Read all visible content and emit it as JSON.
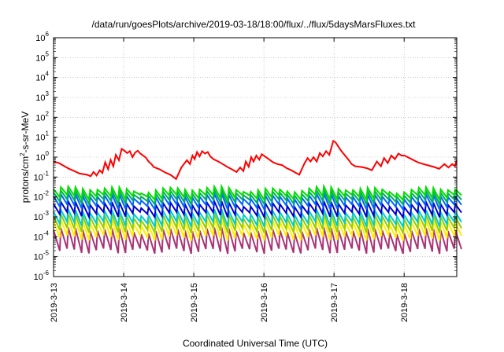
{
  "chart_data": {
    "type": "line",
    "title": "/data/run/goesPlots/archive/2019-03-18/18:00/flux/../flux/5daysMarsFluxes.txt",
    "xlabel": "Coordinated Universal Time (UTC)",
    "ylabel": {
      "pre": "protons/cm",
      "sup": "2",
      "post": "-s-sr-MeV"
    },
    "yscale": "log",
    "ylim": [
      1e-06,
      1000000.0
    ],
    "yticks": [
      {
        "base": "10",
        "exp": "-6",
        "value": 1e-06
      },
      {
        "base": "10",
        "exp": "-5",
        "value": 1e-05
      },
      {
        "base": "10",
        "exp": "-4",
        "value": 0.0001
      },
      {
        "base": "10",
        "exp": "-3",
        "value": 0.001
      },
      {
        "base": "10",
        "exp": "-2",
        "value": 0.01
      },
      {
        "base": "10",
        "exp": "-1",
        "value": 0.1
      },
      {
        "base": "10",
        "exp": "0",
        "value": 1
      },
      {
        "base": "10",
        "exp": "1",
        "value": 10
      },
      {
        "base": "10",
        "exp": "2",
        "value": 100
      },
      {
        "base": "10",
        "exp": "3",
        "value": 1000
      },
      {
        "base": "10",
        "exp": "4",
        "value": 10000
      },
      {
        "base": "10",
        "exp": "5",
        "value": 100000
      },
      {
        "base": "10",
        "exp": "6",
        "value": 1000000
      }
    ],
    "xlim": [
      "2019-03-13T00:00",
      "2019-03-18T18:00"
    ],
    "xticks": [
      {
        "label": "2019-3-13",
        "value": "2019-03-13T00:00"
      },
      {
        "label": "2019-3-14",
        "value": "2019-03-14T00:00"
      },
      {
        "label": "2019-3-15",
        "value": "2019-03-15T00:00"
      },
      {
        "label": "2019-3-16",
        "value": "2019-03-16T00:00"
      },
      {
        "label": "2019-3-17",
        "value": "2019-03-17T00:00"
      },
      {
        "label": "2019-3-18",
        "value": "2019-03-18T00:00"
      }
    ],
    "grid": true,
    "series": [
      {
        "color": "#ff0000",
        "x": [
          "2019-03-13T00:00",
          "2019-03-13T01:52",
          "2019-03-13T03:46",
          "2019-03-13T05:17",
          "2019-03-13T07:06",
          "2019-03-13T08:55",
          "2019-03-13T10:13",
          "2019-03-13T11:27",
          "2019-03-13T12:41",
          "2019-03-13T13:41",
          "2019-03-13T14:43",
          "2019-03-13T15:48",
          "2019-03-13T16:42",
          "2019-03-13T17:41",
          "2019-03-13T18:40",
          "2019-03-13T19:32",
          "2019-03-13T20:28",
          "2019-03-13T21:20",
          "2019-03-13T22:23",
          "2019-03-13T23:19",
          "2019-03-14T00:15",
          "2019-03-14T01:11",
          "2019-03-14T02:07",
          "2019-03-14T03:00",
          "2019-03-14T03:56",
          "2019-03-14T04:51",
          "2019-03-14T05:44",
          "2019-03-14T06:40",
          "2019-03-14T07:36",
          "2019-03-14T08:32",
          "2019-03-14T09:28",
          "2019-03-14T10:17",
          "2019-03-14T12:10",
          "2019-03-14T14:13",
          "2019-03-14T16:00",
          "2019-03-14T17:56",
          "2019-03-14T19:45",
          "2019-03-14T21:38",
          "2019-03-14T22:41",
          "2019-03-14T23:33",
          "2019-03-15T00:18",
          "2019-03-15T01:06",
          "2019-03-15T01:59",
          "2019-03-15T02:51",
          "2019-03-15T03:51",
          "2019-03-15T04:47",
          "2019-03-15T05:39",
          "2019-03-15T06:43",
          "2019-03-15T08:25",
          "2019-03-15T09:54",
          "2019-03-15T11:30",
          "2019-03-15T13:09",
          "2019-03-15T14:38",
          "2019-03-15T15:52",
          "2019-03-15T16:59",
          "2019-03-15T17:48",
          "2019-03-15T18:47",
          "2019-03-15T19:39",
          "2019-03-15T20:28",
          "2019-03-15T21:24",
          "2019-03-15T22:24",
          "2019-03-15T23:16",
          "2019-03-16T01:09",
          "2019-03-16T03:09",
          "2019-03-16T04:37",
          "2019-03-16T06:12",
          "2019-03-16T07:47",
          "2019-03-16T09:23",
          "2019-03-16T10:41",
          "2019-03-16T12:06",
          "2019-03-16T13:55",
          "2019-03-16T14:57",
          "2019-03-16T15:57",
          "2019-03-16T16:59",
          "2019-03-16T18:05",
          "2019-03-16T19:08",
          "2019-03-16T20:07",
          "2019-03-16T21:17",
          "2019-03-16T22:23",
          "2019-03-16T23:44",
          "2019-03-17T00:31",
          "2019-03-17T01:25",
          "2019-03-17T02:32",
          "2019-03-17T03:47",
          "2019-03-17T04:56",
          "2019-03-17T06:01",
          "2019-03-17T07:15",
          "2019-03-17T09:16",
          "2019-03-17T11:12",
          "2019-03-17T12:56",
          "2019-03-17T14:38",
          "2019-03-17T16:03",
          "2019-03-17T17:07",
          "2019-03-17T18:23",
          "2019-03-17T19:36",
          "2019-03-17T20:50",
          "2019-03-17T22:01",
          "2019-03-17T23:08",
          "2019-03-18T00:08",
          "2019-03-18T01:12",
          "2019-03-18T02:53",
          "2019-03-18T04:42",
          "2019-03-18T06:34",
          "2019-03-18T08:23",
          "2019-03-18T10:12",
          "2019-03-18T12:00",
          "2019-03-18T13:46",
          "2019-03-18T15:11",
          "2019-03-18T16:24",
          "2019-03-18T17:22",
          "2019-03-18T18:00"
        ],
        "y": [
          0.6,
          0.5,
          0.35,
          0.26,
          0.2,
          0.15,
          0.14,
          0.13,
          0.11,
          0.18,
          0.12,
          0.22,
          0.16,
          0.55,
          0.25,
          0.72,
          0.35,
          1.3,
          0.7,
          2.6,
          2.1,
          1.6,
          2.0,
          1.0,
          1.7,
          2.1,
          1.5,
          1.2,
          0.95,
          0.6,
          0.45,
          0.32,
          0.25,
          0.17,
          0.13,
          0.08,
          0.3,
          0.7,
          0.45,
          1.2,
          0.8,
          1.8,
          1.1,
          2.0,
          1.5,
          1.8,
          1.1,
          0.8,
          0.6,
          0.45,
          0.32,
          0.24,
          0.18,
          0.3,
          0.2,
          0.6,
          0.33,
          1.0,
          0.6,
          1.2,
          0.75,
          1.4,
          0.9,
          0.55,
          0.45,
          0.4,
          0.28,
          0.22,
          0.17,
          0.13,
          0.5,
          0.9,
          0.6,
          1.0,
          0.6,
          1.6,
          1.1,
          2.0,
          1.3,
          6.5,
          5.5,
          3.5,
          2.0,
          1.2,
          0.75,
          0.45,
          0.35,
          0.32,
          0.28,
          0.22,
          0.6,
          0.35,
          0.9,
          0.5,
          1.2,
          0.8,
          1.5,
          1.2,
          1.2,
          1.0,
          0.75,
          0.55,
          0.45,
          0.38,
          0.32,
          0.26,
          0.45,
          0.3,
          0.45,
          0.35,
          0.7
        ]
      },
      {
        "color": "#00dd00",
        "base": 0.025,
        "dip": 0.4,
        "cycle_hours": 2.5
      },
      {
        "color": "#00aa66",
        "base": 0.017,
        "dip": 0.35,
        "cycle_hours": 2.5
      },
      {
        "color": "#0066ff",
        "base": 0.011,
        "dip": 0.3,
        "cycle_hours": 2.5
      },
      {
        "color": "#0000cc",
        "base": 0.0045,
        "dip": 0.3,
        "cycle_hours": 2.5
      },
      {
        "color": "#00cccc",
        "base": 0.0018,
        "dip": 0.25,
        "cycle_hours": 2.5
      },
      {
        "color": "#99cc00",
        "base": 0.0011,
        "dip": 0.2,
        "cycle_hours": 2.5
      },
      {
        "color": "#ffee00",
        "base": 0.0006,
        "dip": 0.15,
        "cycle_hours": 2.5
      },
      {
        "color": "#aa3377",
        "base": 0.00022,
        "dip": 0.09,
        "cycle_hours": 2.5
      }
    ]
  }
}
